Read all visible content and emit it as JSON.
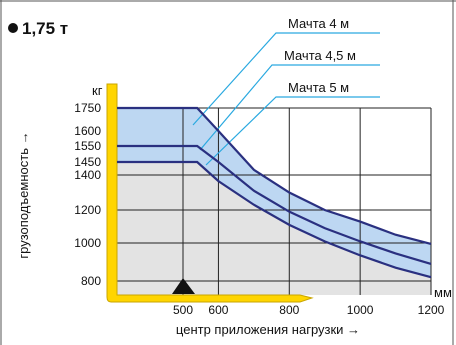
{
  "title": "1,75 т",
  "colors": {
    "band": "#bdd7f2",
    "curve": "#2a3080",
    "floor": "#ffd500",
    "plot_bg": "#e3e3e3",
    "leader": "#2aa9e0"
  },
  "chart_data": {
    "type": "line",
    "title": "1,75 т",
    "xlabel": "центр приложения нагрузки →",
    "ylabel": "грузоподъемность →",
    "x_unit": "мм",
    "y_unit": "кг",
    "x_ticks": [
      500,
      600,
      800,
      1000,
      1200
    ],
    "y_ticks": [
      800,
      1000,
      1200,
      1400,
      1450,
      1550,
      1600,
      1750
    ],
    "xlim": [
      500,
      1200
    ],
    "grid": true,
    "series": [
      {
        "name": "Мачта 4 м",
        "x": [
          500,
          540,
          600,
          700,
          800,
          900,
          1000,
          1100,
          1200
        ],
        "y": [
          1750,
          1750,
          1600,
          1420,
          1300,
          1200,
          1130,
          1050,
          995
        ]
      },
      {
        "name": "Мачта 4,5 м",
        "x": [
          500,
          540,
          600,
          700,
          800,
          900,
          1000,
          1100,
          1200
        ],
        "y": [
          1550,
          1550,
          1450,
          1310,
          1190,
          1090,
          1010,
          945,
          890
        ]
      },
      {
        "name": "Мачта 5 м",
        "x": [
          500,
          540,
          600,
          700,
          800,
          900,
          1000,
          1100,
          1200
        ],
        "y": [
          1450,
          1450,
          1365,
          1230,
          1110,
          1010,
          935,
          870,
          820
        ]
      }
    ]
  }
}
